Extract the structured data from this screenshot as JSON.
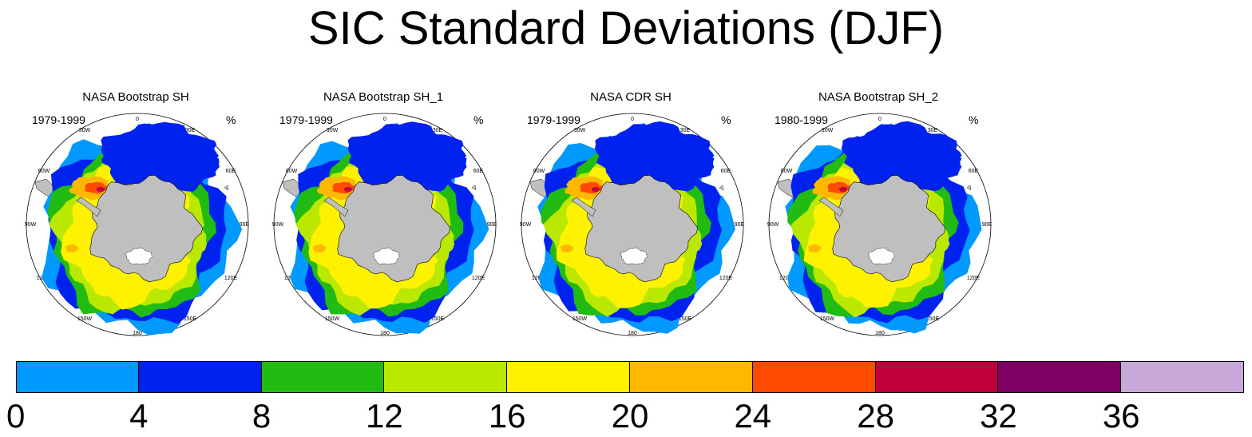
{
  "title": "SIC Standard Deviations (DJF)",
  "panels": [
    {
      "title": "NASA Bootstrap SH",
      "period": "1979-1999",
      "unit": "%"
    },
    {
      "title": "NASA Bootstrap SH_1",
      "period": "1979-1999",
      "unit": "%"
    },
    {
      "title": "NASA CDR SH",
      "period": "1979-1999",
      "unit": "%"
    },
    {
      "title": "NASA Bootstrap SH_2",
      "period": "1980-1999",
      "unit": "%"
    }
  ],
  "longitude_labels": [
    "0",
    "30E",
    "60E",
    "90E",
    "120E",
    "150E",
    "180",
    "150W",
    "120W",
    "90W",
    "60W",
    "30W"
  ],
  "colorbar": {
    "labels": [
      "0",
      "4",
      "8",
      "12",
      "16",
      "20",
      "24",
      "28",
      "32",
      "36"
    ],
    "colors": [
      "#0099ff",
      "#0022ee",
      "#22bb11",
      "#bbe800",
      "#fff200",
      "#ffb800",
      "#ff4a00",
      "#c0003a",
      "#7d0065",
      "#c8a8d8"
    ]
  },
  "colors": {
    "land": "#bfbfbf",
    "map_outline": "#000000"
  }
}
